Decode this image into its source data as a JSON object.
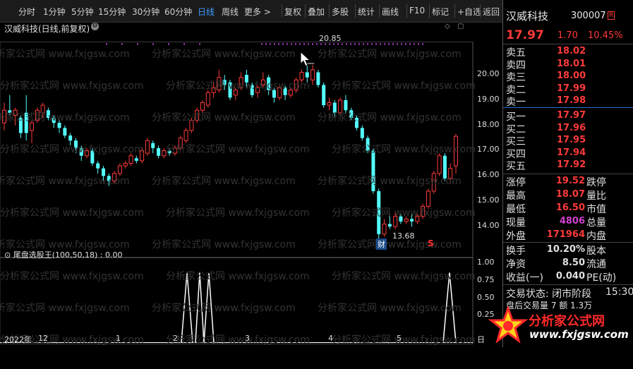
{
  "toolbar": {
    "periods": [
      "分时",
      "1分钟",
      "5分钟",
      "15分钟",
      "30分钟",
      "60分钟",
      "日线",
      "周线",
      "更多 >"
    ],
    "active_period": "日线",
    "actions": [
      "复权",
      "叠加",
      "多股",
      "统计",
      "画线",
      "F10",
      "标记",
      "+自选",
      "返回"
    ]
  },
  "chart": {
    "title": "汉威科技(日线,前复权)",
    "y_labels": [
      "20.00",
      "19.00",
      "18.00",
      "17.00",
      "16.00",
      "15.00",
      "14.00"
    ],
    "high_label": "20.85",
    "low_label": "13.68",
    "marker_cai": "财",
    "marker_s": "S"
  },
  "indicator": {
    "title": "尾盘选股王(100,50,18) : 0.00",
    "y_labels": [
      "1.00",
      "0.75",
      "0.50",
      "0.25"
    ]
  },
  "x_axis": [
    "2022年",
    "12",
    "1",
    "2",
    "3",
    "4",
    "5",
    "日"
  ],
  "watermark": [
    "分析家公式网 www.fxjgsw.com",
    "分析家公式网 www.fxjgsw.com"
  ],
  "quote": {
    "name": "汉威科技",
    "code": "300007",
    "flag": "R",
    "price": "17.97",
    "change": "1.70",
    "change_pct": "10.45%",
    "sells": [
      {
        "label": "卖五",
        "price": "18.02"
      },
      {
        "label": "卖四",
        "price": "18.01"
      },
      {
        "label": "卖三",
        "price": "18.00"
      },
      {
        "label": "卖二",
        "price": "17.99"
      },
      {
        "label": "卖一",
        "price": "17.98"
      }
    ],
    "buys": [
      {
        "label": "买一",
        "price": "17.97"
      },
      {
        "label": "买二",
        "price": "17.96"
      },
      {
        "label": "买三",
        "price": "17.95"
      },
      {
        "label": "买四",
        "price": "17.94"
      },
      {
        "label": "买五",
        "price": "17.92"
      }
    ],
    "stats": [
      {
        "l": "涨停",
        "v": "19.52",
        "r": "跌停",
        "color": "#ff3a3a"
      },
      {
        "l": "最高",
        "v": "18.07",
        "r": "量比",
        "color": "#ff3a3a"
      },
      {
        "l": "最低",
        "v": "16.50",
        "r": "市值",
        "color": "#ff3a3a"
      },
      {
        "l": "现量",
        "v": "4806",
        "r": "总量",
        "color": "#d040d0"
      },
      {
        "l": "外盘",
        "v": "171964",
        "r": "内盘",
        "color": "#ff3a3a"
      }
    ],
    "stats2": [
      {
        "l": "换手",
        "v": "10.20%",
        "r": "股本",
        "color": "#e0e0e0"
      },
      {
        "l": "净资",
        "v": "8.50",
        "r": "流通",
        "color": "#e0e0e0"
      },
      {
        "l": "收益(一)",
        "v": "0.040",
        "r": "PE(动)",
        "color": "#e0e0e0"
      }
    ],
    "trade_status": "交易状态: 闭市阶段",
    "trade_time": "15:30",
    "after_hours": "盘后交易量 7 额 1.3万"
  },
  "logo": {
    "brand": "分析家公式网",
    "url": "www.fxjgsw.com"
  },
  "chart_data": {
    "type": "candlestick",
    "y_axis_ticks": [
      14,
      15,
      16,
      17,
      18,
      19,
      20
    ],
    "high": 20.85,
    "low": 13.68,
    "candles": [
      [
        18.5,
        19.0,
        19.3,
        18.2
      ],
      [
        19.0,
        18.9,
        19.6,
        18.8
      ],
      [
        18.8,
        19.0,
        19.1,
        18.4
      ],
      [
        18.7,
        18.1,
        18.8,
        17.9
      ],
      [
        18.9,
        18.1,
        19.6,
        17.8
      ],
      [
        18.2,
        18.5,
        18.6,
        17.7
      ],
      [
        18.6,
        19.0,
        19.1,
        18.5
      ],
      [
        18.9,
        19.2,
        19.3,
        18.7
      ],
      [
        19.0,
        18.7,
        19.1,
        18.6
      ],
      [
        18.7,
        18.5,
        18.8,
        18.3
      ],
      [
        18.5,
        18.3,
        18.6,
        18.1
      ],
      [
        18.3,
        18.0,
        18.4,
        17.9
      ],
      [
        18.0,
        17.8,
        18.1,
        17.6
      ],
      [
        17.8,
        17.5,
        17.9,
        17.3
      ],
      [
        17.5,
        17.2,
        17.6,
        17.0
      ],
      [
        17.2,
        17.4,
        17.5,
        17.1
      ],
      [
        17.4,
        16.9,
        17.5,
        16.8
      ],
      [
        16.9,
        16.7,
        17.0,
        16.5
      ],
      [
        16.7,
        16.4,
        16.8,
        16.2
      ],
      [
        16.4,
        16.2,
        16.5,
        16.0
      ],
      [
        16.2,
        16.5,
        16.6,
        16.1
      ],
      [
        16.5,
        16.8,
        16.9,
        16.4
      ],
      [
        16.8,
        16.9,
        17.0,
        16.7
      ],
      [
        16.9,
        17.2,
        17.3,
        16.8
      ],
      [
        17.1,
        17.0,
        17.2,
        16.9
      ],
      [
        17.0,
        17.4,
        17.5,
        16.9
      ],
      [
        17.3,
        17.8,
        17.9,
        17.2
      ],
      [
        17.7,
        17.5,
        17.8,
        17.3
      ],
      [
        17.5,
        17.2,
        17.6,
        17.1
      ],
      [
        17.2,
        17.4,
        17.5,
        17.1
      ],
      [
        17.4,
        17.3,
        17.5,
        17.2
      ],
      [
        17.3,
        17.5,
        17.6,
        17.2
      ],
      [
        17.5,
        17.9,
        18.0,
        17.4
      ],
      [
        17.8,
        18.2,
        18.3,
        17.7
      ],
      [
        18.2,
        18.6,
        18.7,
        18.1
      ],
      [
        18.6,
        19.0,
        19.1,
        18.5
      ],
      [
        19.0,
        19.3,
        19.4,
        18.9
      ],
      [
        19.2,
        19.7,
        19.8,
        19.1
      ],
      [
        19.7,
        19.9,
        20.1,
        19.5
      ],
      [
        19.8,
        20.3,
        20.6,
        19.7
      ],
      [
        20.2,
        20.0,
        20.4,
        19.8
      ],
      [
        20.1,
        19.5,
        20.2,
        19.4
      ],
      [
        19.6,
        19.8,
        19.9,
        19.4
      ],
      [
        19.9,
        20.3,
        20.5,
        19.8
      ],
      [
        20.4,
        20.1,
        20.6,
        19.9
      ],
      [
        20.0,
        19.6,
        20.1,
        19.5
      ],
      [
        19.7,
        19.9,
        20.0,
        19.5
      ],
      [
        20.0,
        20.2,
        20.5,
        19.9
      ],
      [
        20.3,
        19.8,
        20.4,
        19.6
      ],
      [
        19.8,
        19.5,
        19.9,
        19.3
      ],
      [
        19.5,
        19.9,
        20.0,
        19.4
      ],
      [
        19.9,
        19.6,
        20.0,
        19.4
      ],
      [
        19.6,
        19.8,
        19.9,
        19.5
      ],
      [
        19.8,
        20.2,
        20.3,
        19.7
      ],
      [
        20.2,
        20.5,
        20.6,
        20.1
      ],
      [
        20.5,
        20.3,
        20.85,
        20.1
      ],
      [
        20.2,
        20.6,
        20.8,
        20.0
      ],
      [
        20.5,
        20.0,
        20.6,
        19.9
      ],
      [
        20.0,
        19.2,
        20.1,
        19.1
      ],
      [
        19.2,
        19.3,
        19.5,
        19.0
      ],
      [
        19.3,
        18.9,
        19.4,
        18.7
      ],
      [
        18.9,
        19.4,
        19.5,
        18.8
      ],
      [
        19.4,
        19.0,
        19.6,
        18.9
      ],
      [
        19.0,
        18.7,
        19.1,
        18.6
      ],
      [
        18.7,
        18.3,
        18.8,
        18.2
      ],
      [
        18.3,
        17.9,
        18.4,
        17.8
      ],
      [
        17.9,
        17.4,
        18.0,
        17.3
      ],
      [
        17.4,
        15.8,
        17.5,
        15.7
      ],
      [
        15.8,
        14.1,
        15.9,
        13.68
      ],
      [
        14.1,
        14.5,
        14.7,
        14.0
      ],
      [
        14.5,
        14.4,
        14.9,
        14.3
      ],
      [
        14.4,
        14.8,
        15.0,
        14.3
      ],
      [
        14.8,
        14.6,
        14.9,
        14.5
      ],
      [
        14.6,
        14.7,
        14.8,
        14.5
      ],
      [
        14.7,
        14.6,
        14.9,
        14.4
      ],
      [
        14.6,
        14.8,
        14.9,
        14.5
      ],
      [
        14.8,
        15.2,
        15.3,
        14.7
      ],
      [
        15.2,
        15.8,
        15.9,
        15.1
      ],
      [
        15.8,
        16.5,
        16.6,
        15.7
      ],
      [
        16.5,
        17.2,
        17.3,
        16.4
      ],
      [
        17.2,
        16.3,
        17.3,
        16.2
      ],
      [
        16.3,
        16.7,
        16.9,
        16.1
      ],
      [
        16.8,
        17.97,
        18.07,
        16.5
      ]
    ],
    "indicator_series": [
      0,
      0,
      0,
      0,
      0,
      0,
      0,
      0,
      0,
      0,
      0,
      0,
      0,
      0,
      0,
      0,
      0,
      0,
      0,
      0,
      0,
      0,
      0,
      0,
      0,
      0,
      0,
      0,
      0,
      0,
      0,
      0,
      0,
      0,
      0,
      0,
      0,
      0,
      0,
      0,
      0,
      0,
      0,
      0,
      0,
      0,
      0,
      0,
      0,
      0,
      0,
      0,
      0,
      0,
      0,
      0,
      0,
      0,
      0,
      0,
      0,
      0,
      0,
      0,
      0,
      0,
      0,
      0,
      0,
      0,
      0,
      0,
      0,
      0,
      0,
      0,
      0,
      0,
      0,
      0,
      0,
      0,
      0
    ],
    "indicator_spikes_x": [
      43.5,
      47,
      49.5,
      52,
      105
    ],
    "indicator_ylim": [
      0,
      1
    ]
  }
}
